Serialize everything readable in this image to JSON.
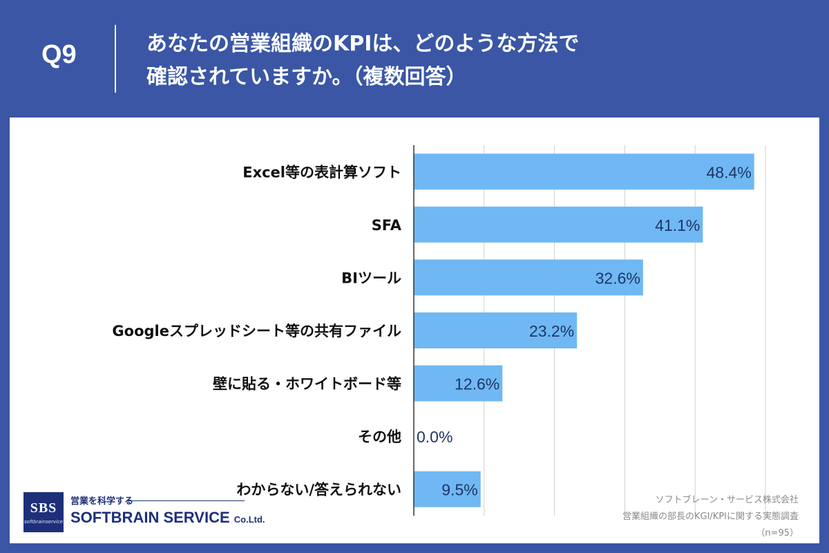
{
  "header": {
    "question_no": "Q9",
    "title_line1": "あなたの営業組織のKPIは、どのような方法で",
    "title_line2": "確認されていますか。（複数回答）"
  },
  "chart_data": {
    "type": "bar",
    "orientation": "horizontal",
    "categories": [
      "Excel等の表計算ソフト",
      "SFA",
      "BIツール",
      "Googleスプレッドシート等の共有ファイル",
      "壁に貼る・ホワイトボード等",
      "その他",
      "わからない/答えられない"
    ],
    "values": [
      48.4,
      41.1,
      32.6,
      23.2,
      12.6,
      0.0,
      9.5
    ],
    "data_labels": [
      "48.4%",
      "41.1%",
      "32.6%",
      "23.2%",
      "12.6%",
      "0.0%",
      "9.5%"
    ],
    "xlim": [
      0,
      50
    ],
    "grid": true,
    "bar_color": "#6fb8f3",
    "label_color": "#1e3566"
  },
  "footer": {
    "company": "ソフトブレーン・サービス株式会社",
    "survey": "営業組織の部長のKGI/KPIに関する実態調査",
    "sample": "（n=95）"
  },
  "logo": {
    "mark": "SBS",
    "mark_sub": "softbrainservice",
    "tagline": "営業を科学する",
    "name": "SOFTBRAIN SERVICE",
    "suffix": "Co.Ltd."
  }
}
